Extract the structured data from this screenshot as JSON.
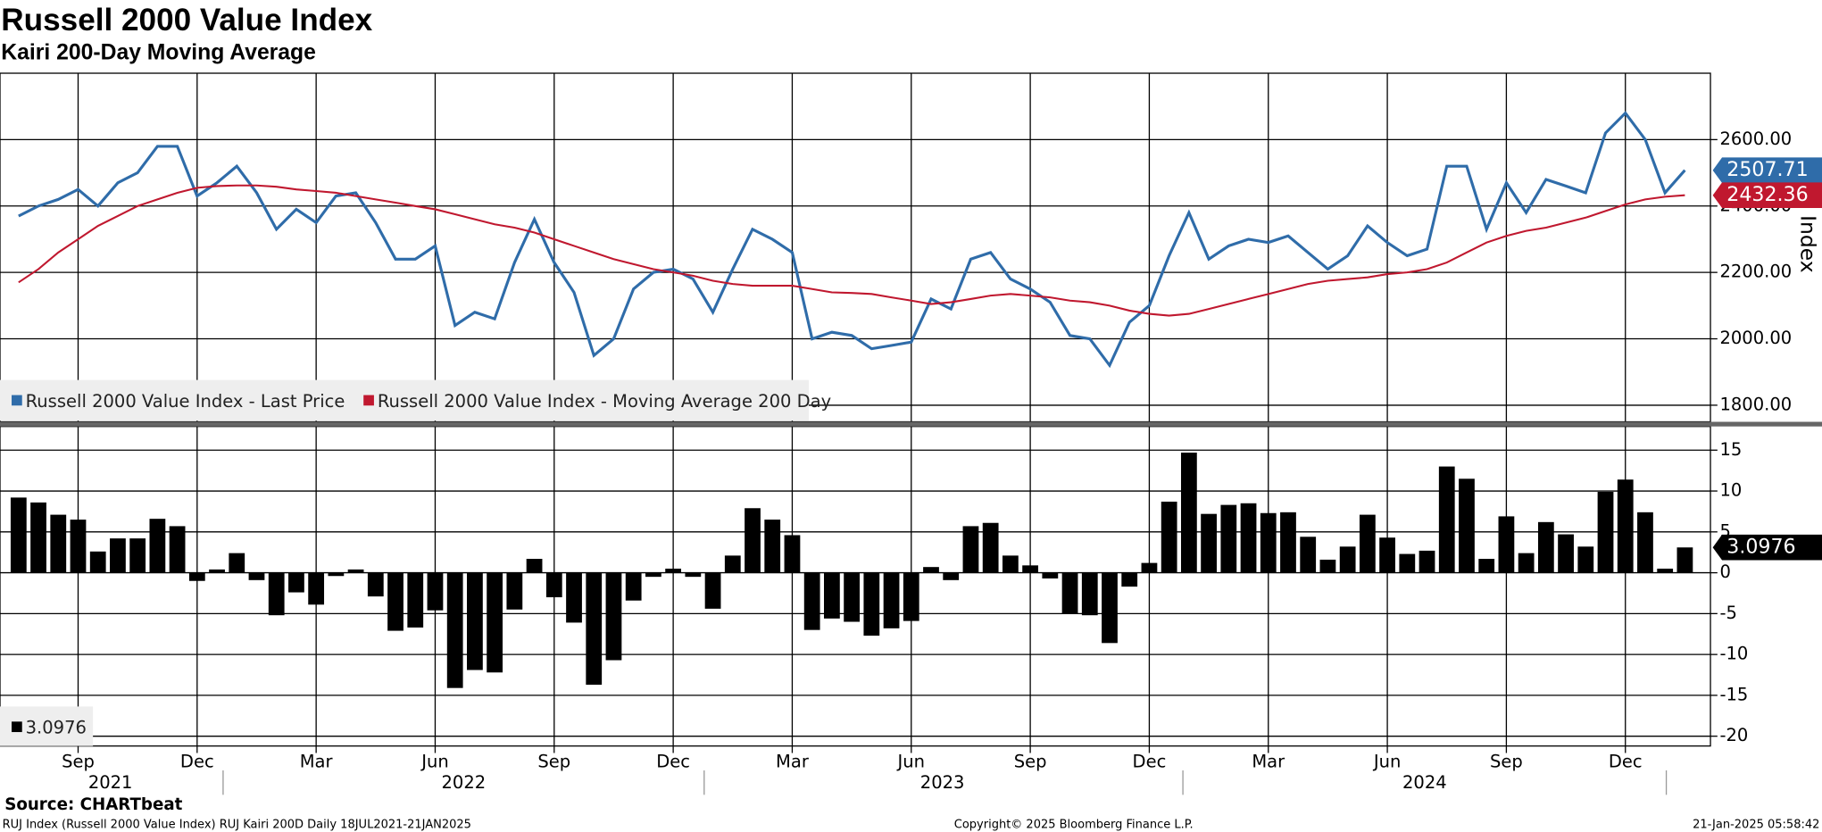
{
  "source": "Source: CHARTbeat",
  "footer": {
    "left": "RUJ Index (Russell 2000 Value Index) RUJ Kairi 200D  Daily 18JUL2021-21JAN2025",
    "center": "Copyright© 2025 Bloomberg Finance L.P.",
    "right": "21-Jan-2025 05:58:42"
  },
  "chart_data": [
    {
      "type": "line",
      "title": "Russell 2000 Value Index",
      "subtitle": "Kairi 200-Day Moving Average",
      "y_label": "Index",
      "ylim": [
        1750,
        2800
      ],
      "yticks": [
        {
          "value": 1800,
          "label": "1800.00"
        },
        {
          "value": 2000,
          "label": "2000.00"
        },
        {
          "value": 2200,
          "label": "2200.00"
        },
        {
          "value": 2400,
          "label": "2400.00"
        },
        {
          "value": 2600,
          "label": "2600.00"
        }
      ],
      "grid": true,
      "legend": "bottom-left",
      "series": [
        {
          "name": "Russell 2000 Value Index - Last Price",
          "color": "#2f6ca9",
          "values": [
            2370,
            2400,
            2420,
            2450,
            2400,
            2470,
            2500,
            2580,
            2580,
            2430,
            2470,
            2520,
            2440,
            2330,
            2390,
            2350,
            2430,
            2440,
            2350,
            2240,
            2240,
            2280,
            2040,
            2080,
            2060,
            2230,
            2360,
            2230,
            2140,
            1950,
            2000,
            2150,
            2200,
            2210,
            2180,
            2080,
            2210,
            2330,
            2300,
            2260,
            2000,
            2020,
            2010,
            1970,
            1980,
            1990,
            2120,
            2090,
            2240,
            2260,
            2180,
            2150,
            2110,
            2010,
            2000,
            1920,
            2050,
            2100,
            2250,
            2380,
            2240,
            2280,
            2300,
            2290,
            2310,
            2260,
            2210,
            2250,
            2340,
            2290,
            2250,
            2270,
            2520,
            2520,
            2330,
            2470,
            2380,
            2480,
            2460,
            2440,
            2620,
            2680,
            2600,
            2440,
            2507.71
          ]
        },
        {
          "name": "Russell 2000 Value Index - Moving Average 200 Day",
          "color": "#c0182f",
          "values": [
            2170,
            2210,
            2260,
            2300,
            2340,
            2370,
            2400,
            2420,
            2440,
            2455,
            2460,
            2462,
            2462,
            2458,
            2450,
            2445,
            2440,
            2430,
            2420,
            2410,
            2400,
            2390,
            2375,
            2360,
            2345,
            2335,
            2320,
            2300,
            2280,
            2260,
            2240,
            2225,
            2210,
            2200,
            2190,
            2175,
            2165,
            2160,
            2160,
            2160,
            2150,
            2140,
            2138,
            2135,
            2125,
            2115,
            2105,
            2110,
            2120,
            2130,
            2135,
            2130,
            2125,
            2115,
            2110,
            2100,
            2085,
            2075,
            2070,
            2075,
            2090,
            2105,
            2120,
            2135,
            2150,
            2165,
            2175,
            2180,
            2185,
            2195,
            2200,
            2210,
            2230,
            2260,
            2290,
            2310,
            2325,
            2335,
            2350,
            2365,
            2385,
            2405,
            2420,
            2428,
            2432.36
          ]
        }
      ]
    },
    {
      "type": "bar",
      "color": "#000000",
      "ylim": [
        -21.2,
        17.9
      ],
      "yticks": [
        -20,
        -15,
        -10,
        -5,
        0,
        5,
        10,
        15
      ],
      "grid": true,
      "categories": [
        null,
        null,
        null,
        "Sep",
        null,
        null,
        null,
        null,
        null,
        "Dec",
        null,
        null,
        null,
        null,
        null,
        "Mar",
        null,
        null,
        null,
        null,
        null,
        "Jun",
        null,
        null,
        null,
        null,
        null,
        "Sep",
        null,
        null,
        null,
        null,
        null,
        "Dec",
        null,
        null,
        null,
        null,
        null,
        "Mar",
        null,
        null,
        null,
        null,
        null,
        "Jun",
        null,
        null,
        null,
        null,
        null,
        "Sep",
        null,
        null,
        null,
        null,
        null,
        "Dec",
        null,
        null,
        null,
        null,
        null,
        "Mar",
        null,
        null,
        null,
        null,
        null,
        "Jun",
        null,
        null,
        null,
        null,
        null,
        "Sep",
        null,
        null,
        null,
        null,
        null,
        "Dec",
        null,
        null,
        null
      ],
      "x_groups": [
        "2021",
        "2022",
        "2023",
        "2024"
      ],
      "values": [
        9.2,
        8.6,
        7.1,
        6.5,
        2.6,
        4.2,
        4.2,
        6.6,
        5.7,
        -1.0,
        0.4,
        2.4,
        -0.9,
        -5.2,
        -2.4,
        -3.9,
        -0.4,
        0.4,
        -2.9,
        -7.1,
        -6.7,
        -4.6,
        -14.1,
        -11.9,
        -12.2,
        -4.5,
        1.7,
        -3.0,
        -6.1,
        -13.7,
        -10.7,
        -3.4,
        -0.5,
        0.5,
        -0.5,
        -4.4,
        2.1,
        7.9,
        6.5,
        4.6,
        -7.0,
        -5.6,
        -6.0,
        -7.7,
        -6.8,
        -5.9,
        0.7,
        -0.9,
        5.7,
        6.1,
        2.1,
        0.9,
        -0.7,
        -5.0,
        -5.2,
        -8.6,
        -1.7,
        1.2,
        8.7,
        14.7,
        7.2,
        8.3,
        8.5,
        7.3,
        7.4,
        4.4,
        1.6,
        3.2,
        7.1,
        4.3,
        2.3,
        2.7,
        13.0,
        11.5,
        1.7,
        6.9,
        2.4,
        6.2,
        4.7,
        3.2,
        9.9,
        11.4,
        7.4,
        0.5,
        3.0976
      ]
    }
  ]
}
